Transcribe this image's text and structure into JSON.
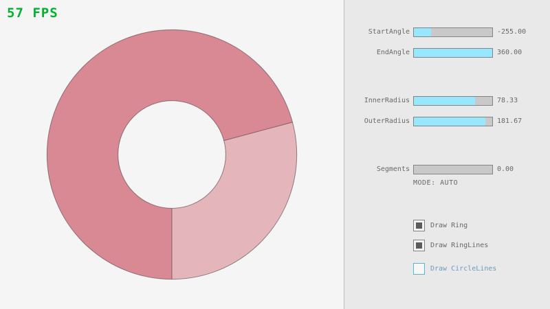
{
  "fps": {
    "text": "57 FPS",
    "color": "#00b32f"
  },
  "colors": {
    "background": "#f5f5f5",
    "panel_background": "#e9e9e9",
    "ring_dark": "#d98994",
    "ring_light": "#e5b5bc",
    "ring_outline": "rgba(0,0,0,0.4)",
    "slider_fill": "#97e8ff",
    "slider_track": "#c9c9c9",
    "text_gray": "#686868",
    "focus_blue": "#5bb2d9"
  },
  "panel": {
    "sliders": [
      {
        "label": "StartAngle",
        "value": "-255.00",
        "fill_pct": 22
      },
      {
        "label": "EndAngle",
        "value": "360.00",
        "fill_pct": 100
      },
      {
        "label": "InnerRadius",
        "value": "78.33",
        "fill_pct": 78
      },
      {
        "label": "OuterRadius",
        "value": "181.67",
        "fill_pct": 91
      },
      {
        "label": "Segments",
        "value": "0.00",
        "fill_pct": 0
      }
    ],
    "mode_text": "MODE: AUTO",
    "checkboxes": [
      {
        "label": "Draw Ring",
        "checked": true
      },
      {
        "label": "Draw RingLines",
        "checked": true
      },
      {
        "label": "Draw CircleLines",
        "checked": false
      }
    ]
  }
}
